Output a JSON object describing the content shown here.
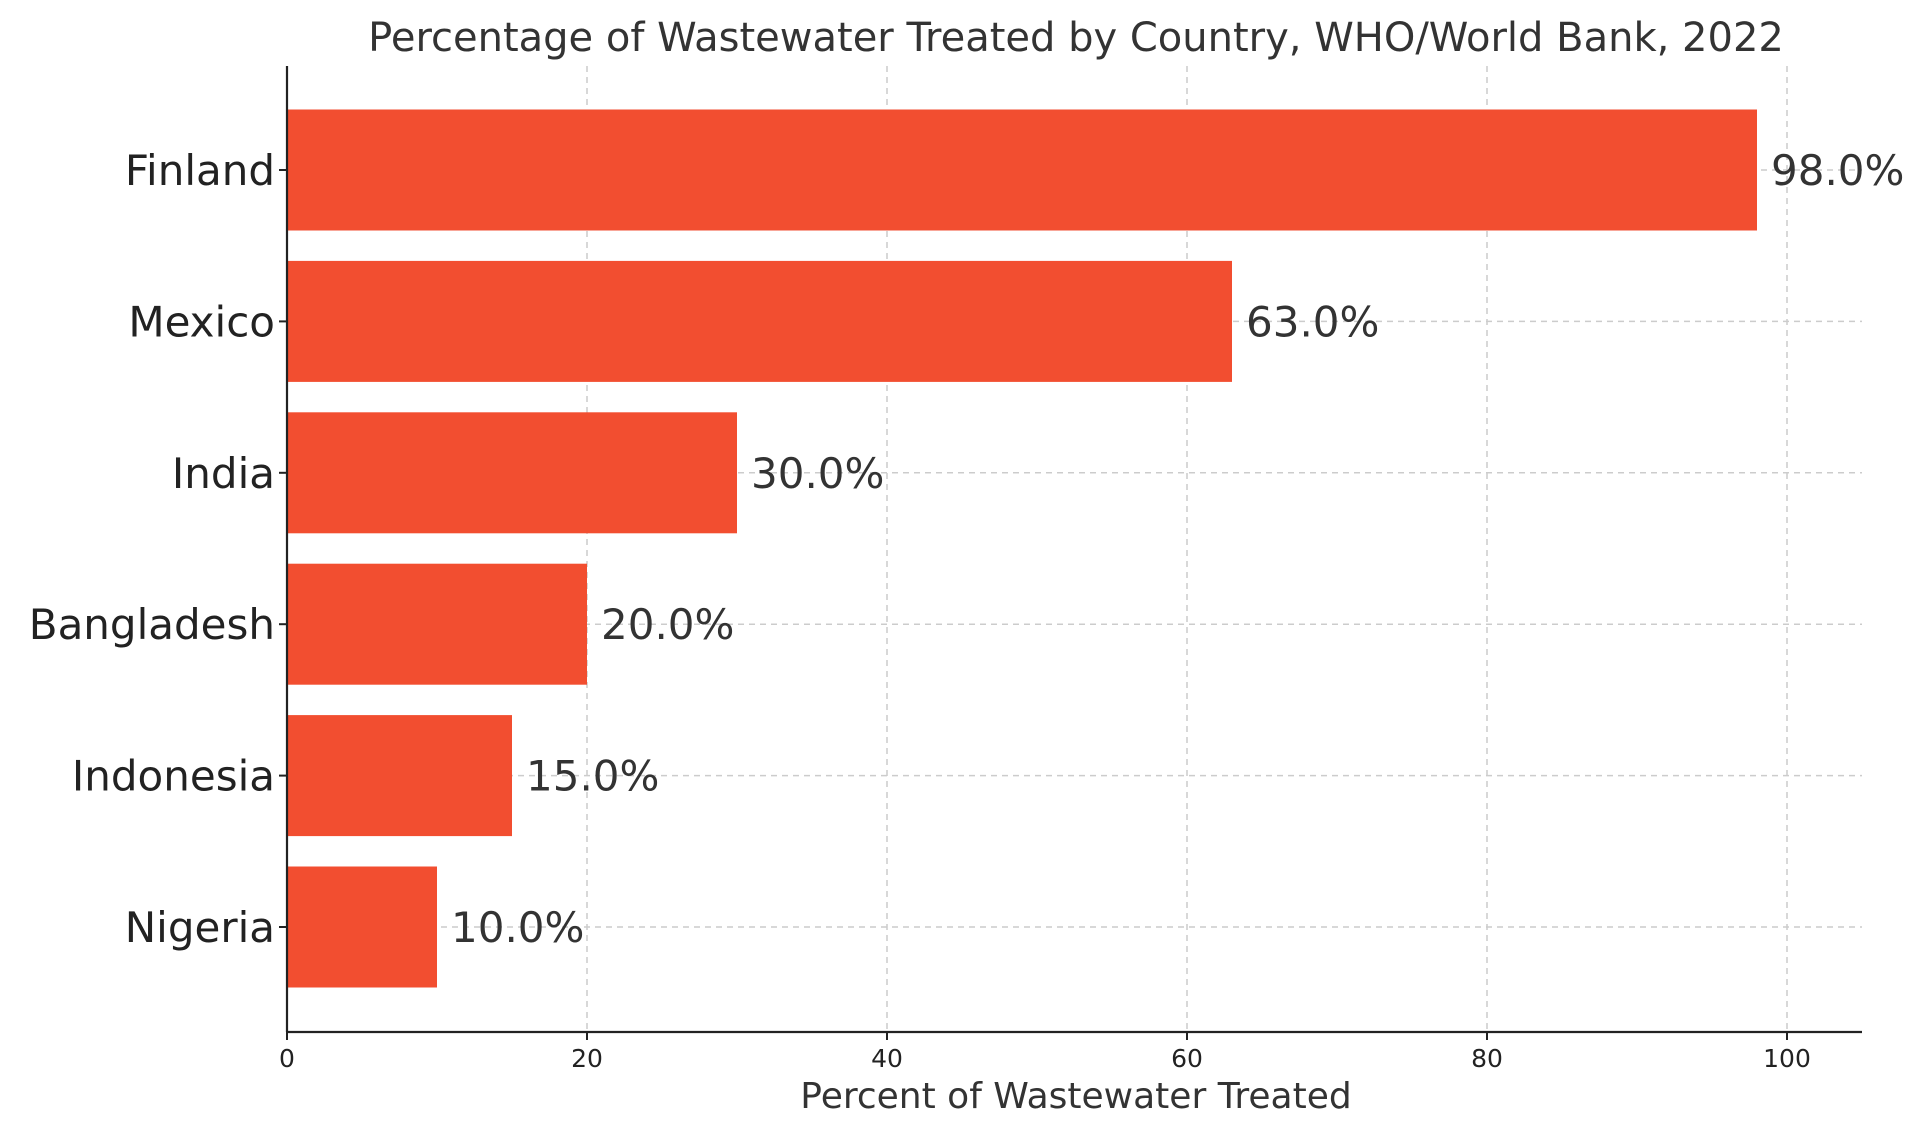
{
  "chart_data": {
    "type": "bar",
    "orientation": "horizontal",
    "title": "Percentage of Wastewater Treated by Country, WHO/World Bank, 2022",
    "xlabel": "Percent of Wastewater Treated",
    "ylabel": "",
    "xlim": [
      0,
      105
    ],
    "xticks": [
      0,
      20,
      40,
      60,
      80,
      100
    ],
    "xtick_labels": [
      "0",
      "20",
      "40",
      "60",
      "80",
      "100"
    ],
    "grid": true,
    "bar_color": "#f24e30",
    "categories": [
      "Finland",
      "Mexico",
      "India",
      "Bangladesh",
      "Indonesia",
      "Nigeria"
    ],
    "values": [
      98.0,
      63.0,
      30.0,
      20.0,
      15.0,
      10.0
    ],
    "data_labels": [
      "98.0%",
      "63.0%",
      "30.0%",
      "20.0%",
      "15.0%",
      "10.0%"
    ]
  }
}
